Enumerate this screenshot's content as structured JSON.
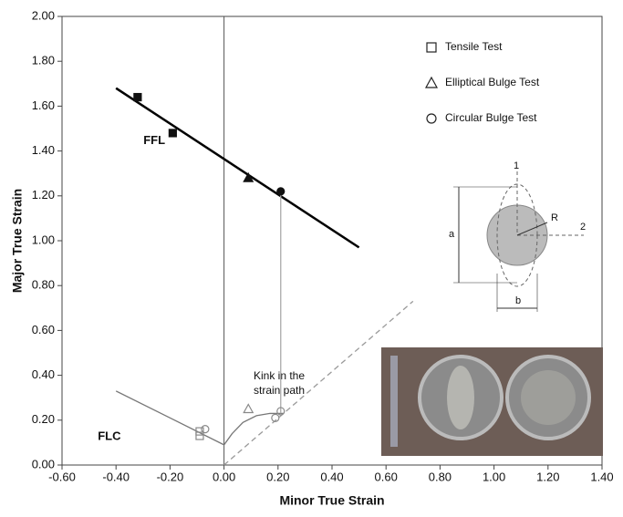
{
  "chart_data": {
    "type": "scatter",
    "xlabel": "Minor True Strain",
    "ylabel": "Major True Strain",
    "xlim": [
      -0.6,
      1.4
    ],
    "xticks": [
      {
        "value": -0.6,
        "label": "-0.60"
      },
      {
        "value": -0.4,
        "label": "-0.40"
      },
      {
        "value": -0.2,
        "label": "-0.20"
      },
      {
        "value": 0,
        "label": "0.00"
      },
      {
        "value": 0.2,
        "label": "0.20"
      },
      {
        "value": 0.4,
        "label": "0.40"
      },
      {
        "value": 0.6,
        "label": "0.60"
      },
      {
        "value": 0.8,
        "label": "0.80"
      },
      {
        "value": 1.0,
        "label": "1.00"
      },
      {
        "value": 1.2,
        "label": "1.20"
      },
      {
        "value": 1.4,
        "label": "1.40"
      }
    ],
    "ylim": [
      0,
      2
    ],
    "yticks": [
      {
        "value": 0,
        "label": "0.00"
      },
      {
        "value": 0.2,
        "label": "0.20"
      },
      {
        "value": 0.4,
        "label": "0.40"
      },
      {
        "value": 0.6,
        "label": "0.60"
      },
      {
        "value": 0.8,
        "label": "0.80"
      },
      {
        "value": 1.0,
        "label": "1.00"
      },
      {
        "value": 1.2,
        "label": "1.20"
      },
      {
        "value": 1.4,
        "label": "1.40"
      },
      {
        "value": 1.6,
        "label": "1.60"
      },
      {
        "value": 1.8,
        "label": "1.80"
      },
      {
        "value": 2.0,
        "label": "2.00"
      }
    ],
    "grid": false,
    "series": [
      {
        "name": "Tensile Test",
        "marker": "square",
        "color": "#111",
        "x": [
          -0.32,
          -0.19,
          -0.09,
          -0.09
        ],
        "y": [
          1.64,
          1.48,
          0.15,
          0.13
        ],
        "filled": [
          true,
          true,
          false,
          false
        ]
      },
      {
        "name": "Elliptical Bulge Test",
        "marker": "triangle",
        "color": "#111",
        "x": [
          0.09,
          0.09
        ],
        "y": [
          1.28,
          0.25
        ],
        "filled": [
          true,
          false
        ]
      },
      {
        "name": "Circular Bulge Test",
        "marker": "circle",
        "color": "#111",
        "x": [
          0.21,
          -0.07,
          0.19,
          0.21
        ],
        "y": [
          1.22,
          0.16,
          0.21,
          0.24
        ],
        "filled": [
          true,
          false,
          false,
          false
        ]
      }
    ],
    "lines": [
      {
        "name": "FFL",
        "color": "#000",
        "x": [
          -0.4,
          0.5
        ],
        "y": [
          1.68,
          0.97
        ]
      },
      {
        "name": "FLC",
        "color": "#777",
        "x": [
          -0.4,
          -0.2,
          0,
          0.03,
          0.07,
          0.12,
          0.17,
          0.22
        ],
        "y": [
          0.33,
          0.21,
          0.09,
          0.14,
          0.19,
          0.22,
          0.23,
          0.23
        ]
      },
      {
        "color": "#999",
        "dash": true,
        "x": [
          0,
          0.7
        ],
        "y": [
          0,
          0.73
        ]
      },
      {
        "color": "#aaa",
        "x": [
          0.21,
          0.21
        ],
        "y": [
          0.23,
          1.22
        ]
      }
    ],
    "annotation": "Kink in the strain path",
    "inset_labels": [
      "1",
      "2",
      "a",
      "b",
      "R"
    ]
  }
}
